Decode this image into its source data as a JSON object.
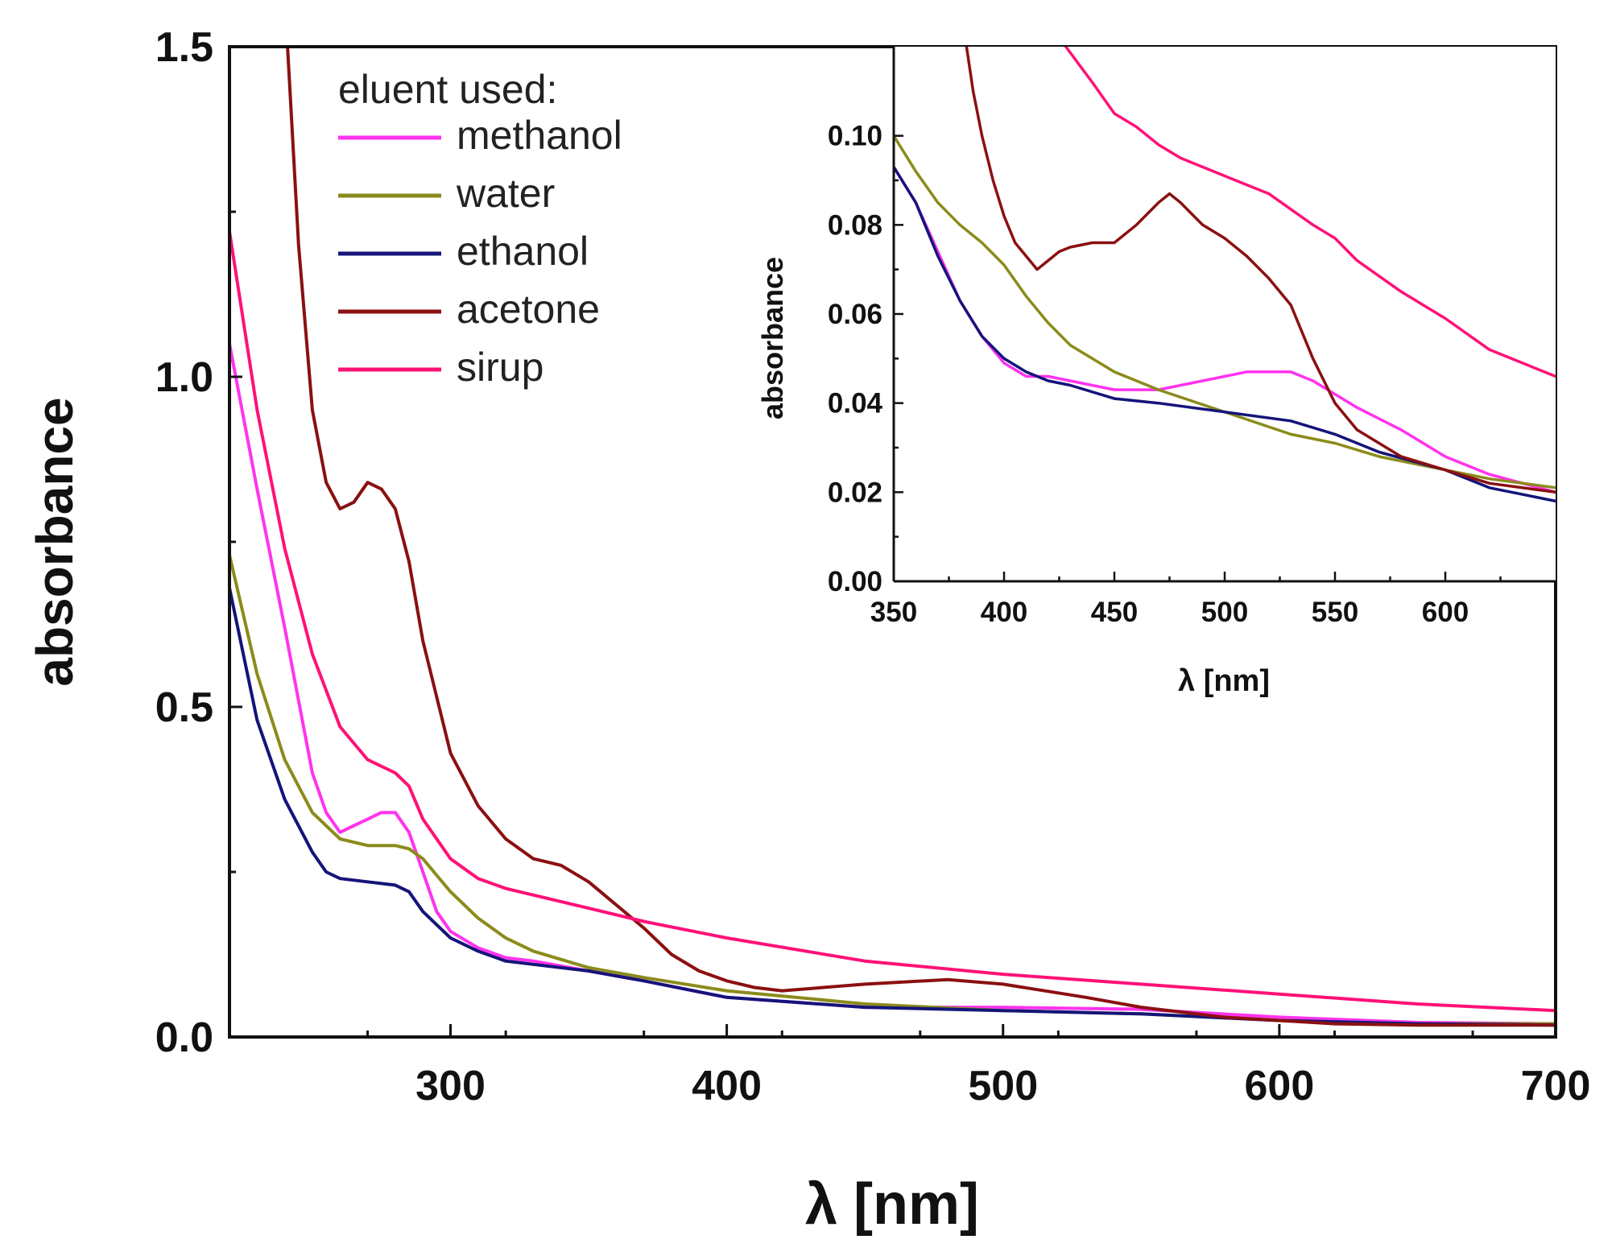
{
  "chart_data": [
    {
      "type": "line",
      "xlabel": "λ [nm]",
      "ylabel": "absorbance",
      "xlim": [
        220,
        700
      ],
      "ylim": [
        0,
        1.5
      ],
      "xticks": [
        300,
        400,
        500,
        600,
        700
      ],
      "yticks": [
        0.0,
        0.5,
        1.0,
        1.5
      ],
      "ytick_labels": [
        "0.0",
        "0.5",
        "1.0",
        "1.5"
      ],
      "legend_title": "eluent used:",
      "legend_position": "top-left",
      "series": [
        {
          "name": "methanol",
          "color": "#ff33ee",
          "x": [
            220,
            230,
            240,
            250,
            255,
            260,
            265,
            270,
            275,
            280,
            285,
            290,
            295,
            300,
            310,
            320,
            330,
            350,
            370,
            400,
            450,
            500,
            550,
            600,
            650,
            700
          ],
          "y": [
            1.05,
            0.83,
            0.62,
            0.4,
            0.34,
            0.31,
            0.32,
            0.33,
            0.34,
            0.34,
            0.31,
            0.25,
            0.19,
            0.16,
            0.135,
            0.12,
            0.115,
            0.1,
            0.085,
            0.06,
            0.045,
            0.045,
            0.042,
            0.03,
            0.022,
            0.02
          ]
        },
        {
          "name": "water",
          "color": "#8b8b1c",
          "x": [
            220,
            230,
            240,
            250,
            260,
            270,
            280,
            285,
            290,
            300,
            310,
            320,
            330,
            350,
            370,
            400,
            450,
            500,
            550,
            600,
            650,
            700
          ],
          "y": [
            0.73,
            0.55,
            0.42,
            0.34,
            0.3,
            0.29,
            0.29,
            0.285,
            0.27,
            0.22,
            0.18,
            0.15,
            0.13,
            0.105,
            0.09,
            0.07,
            0.05,
            0.04,
            0.035,
            0.025,
            0.02,
            0.02
          ]
        },
        {
          "name": "ethanol",
          "color": "#14147a",
          "x": [
            220,
            230,
            240,
            250,
            255,
            260,
            270,
            280,
            285,
            290,
            300,
            310,
            320,
            330,
            350,
            370,
            400,
            450,
            500,
            550,
            600,
            650,
            700
          ],
          "y": [
            0.68,
            0.48,
            0.36,
            0.28,
            0.25,
            0.24,
            0.235,
            0.23,
            0.22,
            0.19,
            0.15,
            0.13,
            0.115,
            0.11,
            0.1,
            0.085,
            0.06,
            0.045,
            0.04,
            0.035,
            0.025,
            0.02,
            0.018
          ]
        },
        {
          "name": "acetone",
          "color": "#8b1010",
          "x": [
            241,
            245,
            250,
            255,
            260,
            265,
            270,
            275,
            280,
            285,
            290,
            300,
            310,
            320,
            330,
            340,
            350,
            360,
            370,
            380,
            390,
            400,
            410,
            420,
            450,
            480,
            500,
            530,
            550,
            580,
            620,
            650,
            700
          ],
          "y": [
            1.5,
            1.2,
            0.95,
            0.84,
            0.8,
            0.81,
            0.84,
            0.83,
            0.8,
            0.72,
            0.6,
            0.43,
            0.35,
            0.3,
            0.27,
            0.26,
            0.235,
            0.2,
            0.165,
            0.125,
            0.1,
            0.085,
            0.075,
            0.07,
            0.08,
            0.087,
            0.08,
            0.06,
            0.045,
            0.03,
            0.02,
            0.018,
            0.018
          ]
        },
        {
          "name": "sirup",
          "color": "#ff1177",
          "x": [
            220,
            230,
            240,
            250,
            260,
            270,
            280,
            285,
            290,
            300,
            310,
            320,
            330,
            350,
            370,
            400,
            450,
            500,
            550,
            600,
            650,
            700
          ],
          "y": [
            1.22,
            0.95,
            0.74,
            0.58,
            0.47,
            0.42,
            0.4,
            0.38,
            0.33,
            0.27,
            0.24,
            0.225,
            0.215,
            0.195,
            0.175,
            0.15,
            0.115,
            0.095,
            0.08,
            0.065,
            0.05,
            0.04
          ]
        }
      ]
    },
    {
      "type": "line",
      "xlabel": "λ [nm]",
      "ylabel": "absorbance",
      "xlim": [
        350,
        650
      ],
      "ylim": [
        0,
        0.12
      ],
      "xticks": [
        350,
        400,
        450,
        500,
        550,
        600
      ],
      "yticks": [
        0.0,
        0.02,
        0.04,
        0.06,
        0.08,
        0.1
      ],
      "ytick_labels": [
        "0.00",
        "0.02",
        "0.04",
        "0.06",
        "0.08",
        "0.10"
      ],
      "series": [
        {
          "name": "methanol",
          "color": "#ff33ee",
          "x": [
            350,
            360,
            370,
            380,
            390,
            400,
            410,
            420,
            430,
            450,
            470,
            490,
            500,
            510,
            520,
            530,
            540,
            550,
            560,
            580,
            600,
            620,
            650
          ],
          "y": [
            0.093,
            0.085,
            0.074,
            0.063,
            0.055,
            0.049,
            0.046,
            0.046,
            0.045,
            0.043,
            0.043,
            0.045,
            0.046,
            0.047,
            0.047,
            0.047,
            0.045,
            0.042,
            0.039,
            0.034,
            0.028,
            0.024,
            0.02
          ]
        },
        {
          "name": "water",
          "color": "#8b8b1c",
          "x": [
            350,
            360,
            370,
            380,
            390,
            400,
            410,
            420,
            430,
            450,
            470,
            500,
            530,
            550,
            570,
            600,
            620,
            650
          ],
          "y": [
            0.1,
            0.092,
            0.085,
            0.08,
            0.076,
            0.071,
            0.064,
            0.058,
            0.053,
            0.047,
            0.043,
            0.038,
            0.033,
            0.031,
            0.028,
            0.025,
            0.023,
            0.021
          ]
        },
        {
          "name": "ethanol",
          "color": "#14147a",
          "x": [
            350,
            360,
            370,
            380,
            390,
            400,
            410,
            420,
            430,
            450,
            470,
            500,
            530,
            550,
            570,
            600,
            620,
            650
          ],
          "y": [
            0.093,
            0.085,
            0.073,
            0.063,
            0.055,
            0.05,
            0.047,
            0.045,
            0.044,
            0.041,
            0.04,
            0.038,
            0.036,
            0.033,
            0.029,
            0.025,
            0.021,
            0.018
          ]
        },
        {
          "name": "acetone",
          "color": "#8b1010",
          "x": [
            383,
            386,
            390,
            395,
            400,
            405,
            410,
            415,
            420,
            425,
            430,
            440,
            450,
            460,
            470,
            475,
            480,
            490,
            500,
            510,
            520,
            530,
            540,
            550,
            560,
            580,
            600,
            620,
            650
          ],
          "y": [
            0.12,
            0.11,
            0.1,
            0.09,
            0.082,
            0.076,
            0.073,
            0.07,
            0.072,
            0.074,
            0.075,
            0.076,
            0.076,
            0.08,
            0.085,
            0.087,
            0.085,
            0.08,
            0.077,
            0.073,
            0.068,
            0.062,
            0.05,
            0.04,
            0.034,
            0.028,
            0.025,
            0.022,
            0.02
          ]
        },
        {
          "name": "sirup",
          "color": "#ff1177",
          "x": [
            428,
            440,
            450,
            460,
            470,
            480,
            490,
            500,
            520,
            540,
            550,
            560,
            580,
            600,
            620,
            650
          ],
          "y": [
            0.12,
            0.112,
            0.105,
            0.102,
            0.098,
            0.095,
            0.093,
            0.091,
            0.087,
            0.08,
            0.077,
            0.072,
            0.065,
            0.059,
            0.052,
            0.046
          ]
        }
      ]
    }
  ]
}
